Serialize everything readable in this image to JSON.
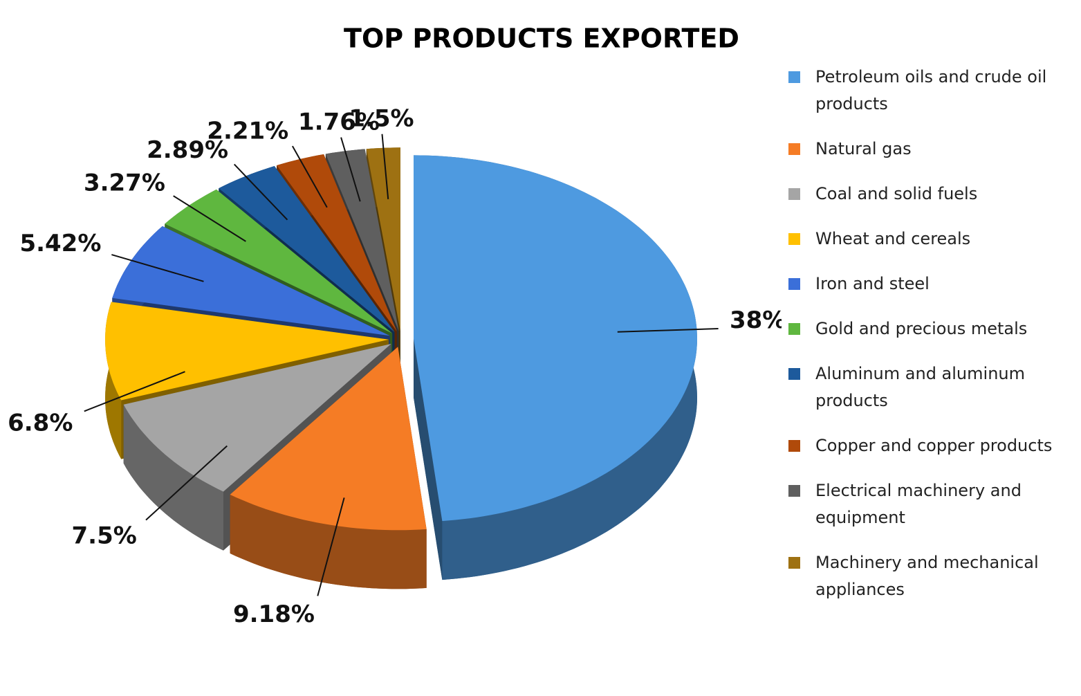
{
  "chart_data": {
    "type": "pie3d",
    "title": "TOP PRODUCTS EXPORTED",
    "categories": [
      "Petroleum oils and crude oil products",
      "Natural gas",
      "Coal and solid fuels",
      "Wheat and cereals",
      "Iron and steel",
      "Gold and precious metals",
      "Aluminum and aluminum products",
      "Copper and copper products",
      "Electrical machinery and equipment",
      "Machinery and mechanical appliances"
    ],
    "values": [
      38,
      9.18,
      7.5,
      6.8,
      5.42,
      3.27,
      2.89,
      2.21,
      1.76,
      1.5
    ],
    "value_labels": [
      "38%",
      "9.18%",
      "7.5%",
      "6.8%",
      "5.42%",
      "3.27%",
      "2.89%",
      "2.21%",
      "1.76%",
      "1.5%"
    ],
    "colors": [
      "#4e9ae0",
      "#f57c25",
      "#a5a5a5",
      "#ffc000",
      "#3b6fd9",
      "#5fb73f",
      "#1d5a9c",
      "#b04a0a",
      "#5f5f5f",
      "#9e7112"
    ],
    "legend": "right"
  }
}
